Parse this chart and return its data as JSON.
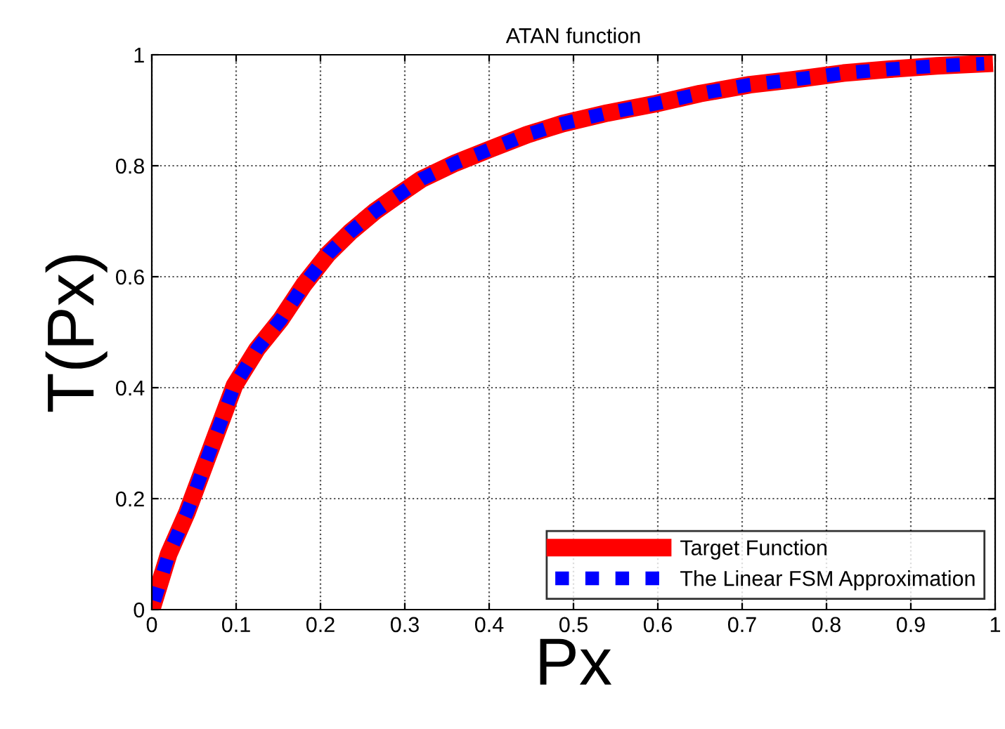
{
  "chart_data": {
    "type": "line",
    "title": "ATAN function",
    "xlabel": "Px",
    "ylabel": "T(Px)",
    "x": [
      0.003,
      0.02,
      0.042,
      0.07,
      0.098,
      0.125,
      0.153,
      0.18,
      0.209,
      0.235,
      0.264,
      0.29,
      0.32,
      0.36,
      0.403,
      0.445,
      0.487,
      0.54,
      0.598,
      0.65,
      0.709,
      0.76,
      0.82,
      0.875,
      0.931,
      0.987
    ],
    "series": [
      {
        "name": "Target Function",
        "color": "#ff0000",
        "line_style": "solid",
        "values": [
          0.016,
          0.1,
          0.176,
          0.29,
          0.404,
          0.47,
          0.523,
          0.585,
          0.641,
          0.68,
          0.717,
          0.745,
          0.776,
          0.805,
          0.831,
          0.856,
          0.876,
          0.895,
          0.912,
          0.93,
          0.946,
          0.955,
          0.967,
          0.974,
          0.98,
          0.984
        ]
      },
      {
        "name": "The Linear FSM Approximation",
        "color": "#0000ff",
        "line_style": "dotted",
        "values": [
          0.016,
          0.1,
          0.176,
          0.29,
          0.404,
          0.47,
          0.523,
          0.585,
          0.641,
          0.68,
          0.717,
          0.745,
          0.776,
          0.805,
          0.831,
          0.856,
          0.876,
          0.895,
          0.912,
          0.93,
          0.946,
          0.955,
          0.967,
          0.974,
          0.98,
          0.984
        ]
      }
    ],
    "xlim": [
      0,
      1
    ],
    "xticks": [
      0,
      0.1,
      0.2,
      0.3,
      0.4,
      0.5,
      0.6,
      0.7,
      0.8,
      0.9,
      1
    ],
    "ylim": [
      0,
      1
    ],
    "yticks": [
      0,
      0.2,
      0.4,
      0.6,
      0.8,
      1
    ],
    "grid": true,
    "legend": "bottom right"
  }
}
